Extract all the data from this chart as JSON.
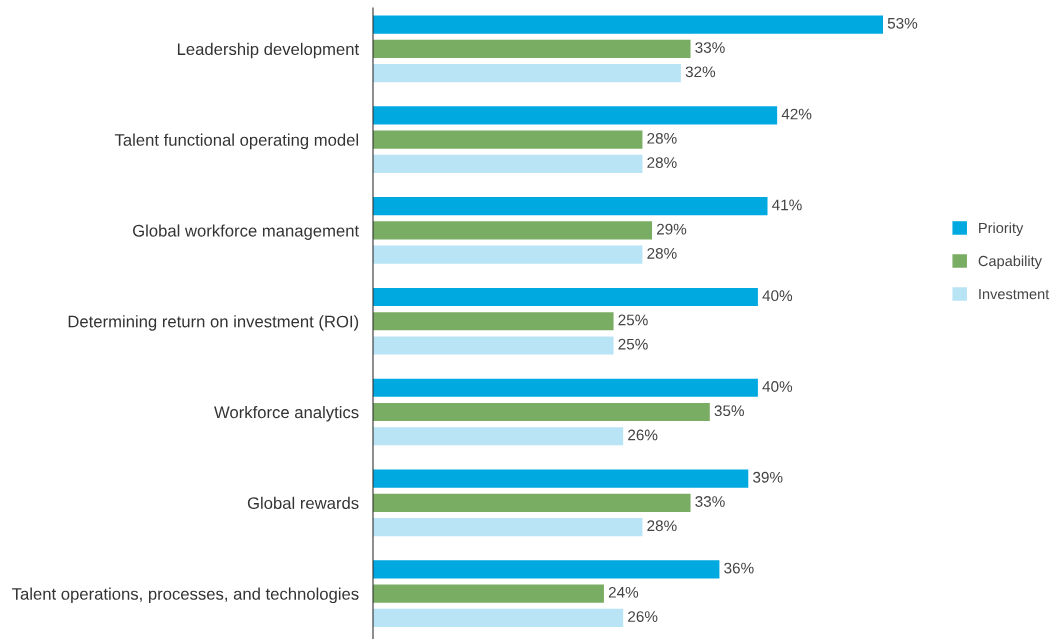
{
  "chart_data": {
    "type": "bar",
    "orientation": "horizontal",
    "legend": "right",
    "grid": false,
    "tick_labels": "y",
    "categories": [
      "Leadership development",
      "Talent functional operating model",
      "Global workforce management",
      "Determining return on investment (ROI)",
      "Workforce analytics",
      "Global rewards",
      "Talent operations, processes, and technologies"
    ],
    "series": [
      {
        "name": "Priority",
        "color": "#00a9e0",
        "values": [
          53,
          42,
          41,
          40,
          40,
          39,
          36
        ],
        "value_labels": [
          "53%",
          "42%",
          "41%",
          "40%",
          "40%",
          "39%",
          "36%"
        ]
      },
      {
        "name": "Capability",
        "color": "#7aad64",
        "values": [
          33,
          28,
          29,
          25,
          35,
          33,
          24
        ],
        "value_labels": [
          "33%",
          "28%",
          "29%",
          "25%",
          "35%",
          "33%",
          "24%"
        ]
      },
      {
        "name": "Investment",
        "color": "#b9e4f6",
        "values": [
          32,
          28,
          28,
          25,
          26,
          28,
          26
        ],
        "value_labels": [
          "32%",
          "28%",
          "28%",
          "25%",
          "26%",
          "28%",
          "26%"
        ]
      }
    ]
  }
}
